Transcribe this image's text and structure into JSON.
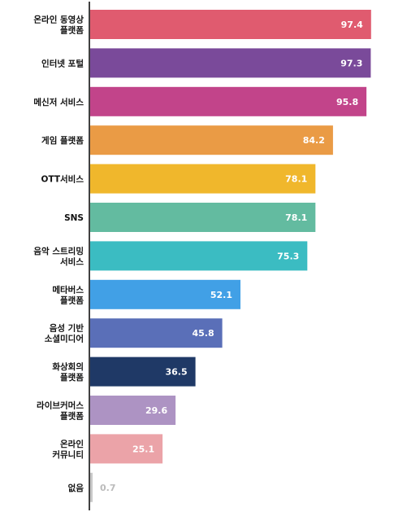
{
  "chart_data": {
    "type": "bar",
    "orientation": "horizontal",
    "categories": [
      [
        "온라인 동영상",
        "플랫폼"
      ],
      [
        "인터넷 포털"
      ],
      [
        "메신저 서비스"
      ],
      [
        "게임 플랫폼"
      ],
      [
        "OTT서비스"
      ],
      [
        "SNS"
      ],
      [
        "음악 스트리밍",
        "서비스"
      ],
      [
        "메타버스",
        "플랫폼"
      ],
      [
        "음성 기반",
        "소셜미디어"
      ],
      [
        "화상회의",
        "플랫폼"
      ],
      [
        "라이브커머스",
        "플랫폼"
      ],
      [
        "온라인",
        "커뮤니티"
      ],
      [
        "없음"
      ]
    ],
    "values": [
      97.4,
      97.3,
      95.8,
      84.2,
      78.1,
      78.1,
      75.3,
      52.1,
      45.8,
      36.5,
      29.6,
      25.1,
      0.7
    ],
    "value_labels": [
      "97.4",
      "97.3",
      "95.8",
      "84.2",
      "78.1",
      "78.1",
      "75.3",
      "52.1",
      "45.8",
      "36.5",
      "29.6",
      "25.1",
      "0.7"
    ],
    "colors": [
      "#e05b6f",
      "#7a4a9a",
      "#c2448a",
      "#ea9b45",
      "#f0b72c",
      "#63bba0",
      "#3bbcc2",
      "#41a0e6",
      "#5a6fb8",
      "#1f3966",
      "#ad93c3",
      "#eba3a8",
      "#c8c8c8"
    ],
    "xlim": [
      0,
      100
    ],
    "grid": false,
    "legend": "none"
  }
}
